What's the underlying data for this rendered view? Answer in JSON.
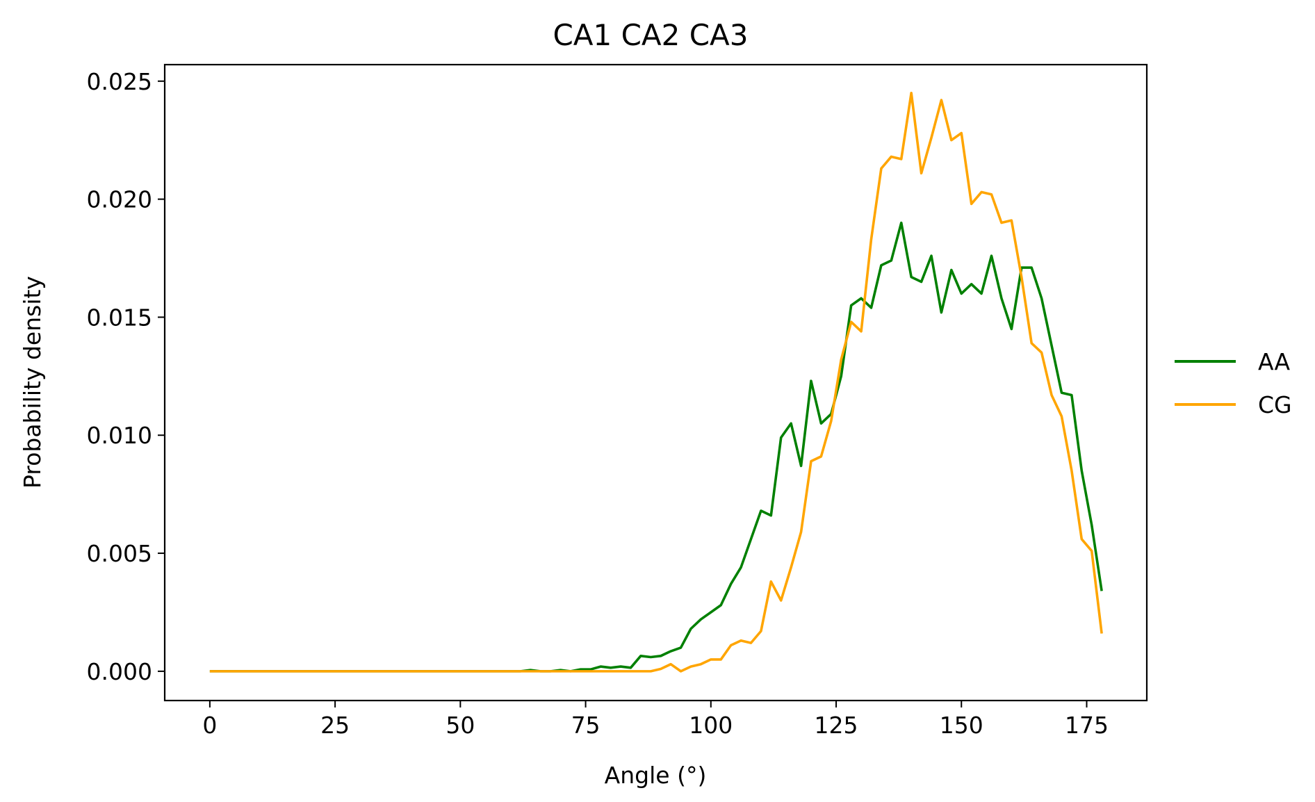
{
  "chart_data": {
    "type": "line",
    "title": "CA1 CA2 CA3",
    "xlabel": "Angle (°)",
    "ylabel": "Probability density",
    "xlim": [
      -9,
      187
    ],
    "ylim": [
      -0.00124,
      0.0257
    ],
    "xticks": [
      0,
      25,
      50,
      75,
      100,
      125,
      150,
      175
    ],
    "xtick_labels": [
      "0",
      "25",
      "50",
      "75",
      "100",
      "125",
      "150",
      "175"
    ],
    "yticks": [
      0,
      0.005,
      0.01,
      0.015,
      0.02,
      0.025
    ],
    "ytick_labels": [
      "0.000",
      "0.005",
      "0.010",
      "0.015",
      "0.020",
      "0.025"
    ],
    "grid": false,
    "legend_position": "center-right-outside",
    "series": [
      {
        "name": "AA",
        "color": "#008000",
        "x": [
          0,
          2,
          4,
          6,
          8,
          10,
          12,
          14,
          16,
          18,
          20,
          22,
          24,
          26,
          28,
          30,
          32,
          34,
          36,
          38,
          40,
          42,
          44,
          46,
          48,
          50,
          52,
          54,
          56,
          58,
          60,
          62,
          64,
          66,
          68,
          70,
          72,
          74,
          76,
          78,
          80,
          82,
          84,
          86,
          88,
          90,
          92,
          94,
          96,
          98,
          100,
          102,
          104,
          106,
          108,
          110,
          112,
          114,
          116,
          118,
          120,
          122,
          124,
          126,
          128,
          130,
          132,
          134,
          136,
          138,
          140,
          142,
          144,
          146,
          148,
          150,
          152,
          154,
          156,
          158,
          160,
          162,
          164,
          166,
          168,
          170,
          172,
          174,
          176,
          178
        ],
        "y": [
          0,
          0,
          0,
          0,
          0,
          0,
          0,
          0,
          0,
          0,
          0,
          0,
          0,
          0,
          0,
          0,
          0,
          0,
          0,
          0,
          0,
          0,
          0,
          0,
          0,
          0,
          0,
          0,
          0,
          0,
          0,
          0,
          5e-05,
          0,
          0,
          5e-05,
          0,
          8e-05,
          8e-05,
          0.0002,
          0.00015,
          0.0002,
          0.00015,
          0.00065,
          0.0006,
          0.00065,
          0.00085,
          0.001,
          0.0018,
          0.0022,
          0.0025,
          0.0028,
          0.0037,
          0.0044,
          0.0056,
          0.0068,
          0.0066,
          0.0099,
          0.0105,
          0.0087,
          0.0123,
          0.0105,
          0.0109,
          0.0125,
          0.0155,
          0.0158,
          0.0154,
          0.0172,
          0.0174,
          0.019,
          0.0167,
          0.0165,
          0.0176,
          0.0152,
          0.017,
          0.016,
          0.0164,
          0.016,
          0.0176,
          0.0158,
          0.0145,
          0.0171,
          0.0171,
          0.0158,
          0.0138,
          0.0118,
          0.0117,
          0.0085,
          0.0062,
          0.0034
        ]
      },
      {
        "name": "CG",
        "color": "#ffa500",
        "x": [
          0,
          2,
          4,
          6,
          8,
          10,
          12,
          14,
          16,
          18,
          20,
          22,
          24,
          26,
          28,
          30,
          32,
          34,
          36,
          38,
          40,
          42,
          44,
          46,
          48,
          50,
          52,
          54,
          56,
          58,
          60,
          62,
          64,
          66,
          68,
          70,
          72,
          74,
          76,
          78,
          80,
          82,
          84,
          86,
          88,
          90,
          92,
          94,
          96,
          98,
          100,
          102,
          104,
          106,
          108,
          110,
          112,
          114,
          116,
          118,
          120,
          122,
          124,
          126,
          128,
          130,
          132,
          134,
          136,
          138,
          140,
          142,
          144,
          146,
          148,
          150,
          152,
          154,
          156,
          158,
          160,
          162,
          164,
          166,
          168,
          170,
          172,
          174,
          176,
          178
        ],
        "y": [
          0,
          0,
          0,
          0,
          0,
          0,
          0,
          0,
          0,
          0,
          0,
          0,
          0,
          0,
          0,
          0,
          0,
          0,
          0,
          0,
          0,
          0,
          0,
          0,
          0,
          0,
          0,
          0,
          0,
          0,
          0,
          0,
          0,
          0,
          0,
          0,
          0,
          0,
          0,
          0,
          0,
          0,
          0,
          0,
          0,
          0.0001,
          0.0003,
          0,
          0.0002,
          0.0003,
          0.0005,
          0.0005,
          0.0011,
          0.0013,
          0.0012,
          0.0017,
          0.0038,
          0.003,
          0.0044,
          0.0059,
          0.0089,
          0.0091,
          0.0106,
          0.0132,
          0.0148,
          0.0144,
          0.0183,
          0.0213,
          0.0218,
          0.0217,
          0.0245,
          0.0211,
          0.0226,
          0.0242,
          0.0225,
          0.0228,
          0.0198,
          0.0203,
          0.0202,
          0.019,
          0.0191,
          0.0167,
          0.0139,
          0.0135,
          0.0117,
          0.0108,
          0.0085,
          0.0056,
          0.0051,
          0.0016
        ]
      }
    ]
  }
}
